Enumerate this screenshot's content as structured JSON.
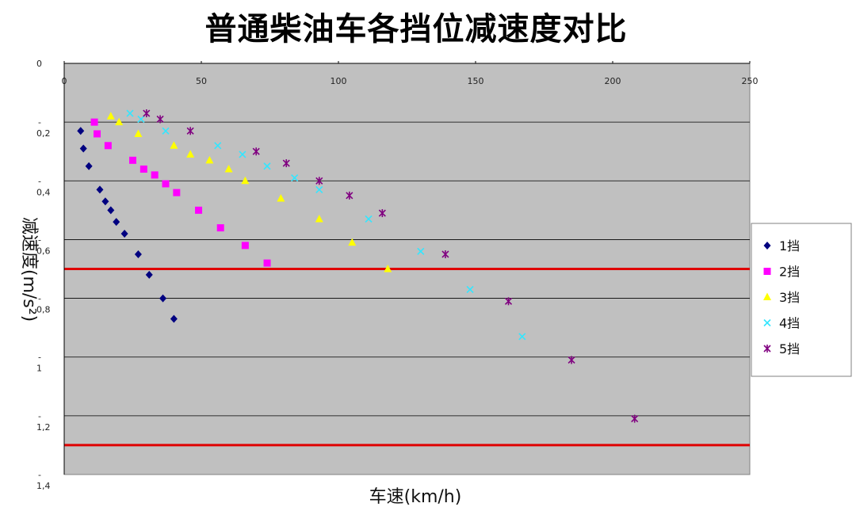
{
  "chart_data": {
    "type": "scatter",
    "title": "普通柴油车各挡位减速度对比",
    "xlabel": "车速(km/h)",
    "ylabel": "减速度(m/s²)",
    "xlim": [
      0,
      250
    ],
    "ylim": [
      0,
      1.4
    ],
    "y_inverted": true,
    "x_ticks": [
      0,
      50,
      100,
      150,
      200,
      250
    ],
    "y_ticks": [
      0,
      0.2,
      0.4,
      0.6,
      0.8,
      1.0,
      1.2,
      1.4
    ],
    "y_tick_labels": [
      "0",
      "0,2",
      "0,4",
      "0,6",
      "0,8",
      "1",
      "1,2",
      "1,4"
    ],
    "y_tick_prefix": "-",
    "grid": "horizontal",
    "plot_background": "#c0c0c0",
    "legend_position": "right",
    "reference_lines": [
      {
        "y": 0.7,
        "color": "#e00000"
      },
      {
        "y": 1.3,
        "color": "#e00000"
      }
    ],
    "series": [
      {
        "name": "1挡",
        "marker": "diamond",
        "color": "#000080",
        "x": [
          6,
          7,
          9,
          13,
          15,
          17,
          19,
          22,
          27,
          31,
          36,
          40
        ],
        "y": [
          0.23,
          0.29,
          0.35,
          0.43,
          0.47,
          0.5,
          0.54,
          0.58,
          0.65,
          0.72,
          0.8,
          0.87
        ]
      },
      {
        "name": "2挡",
        "marker": "square",
        "color": "#ff00ff",
        "x": [
          11,
          12,
          16,
          25,
          29,
          33,
          37,
          41,
          49,
          57,
          66,
          74
        ],
        "y": [
          0.2,
          0.24,
          0.28,
          0.33,
          0.36,
          0.38,
          0.41,
          0.44,
          0.5,
          0.56,
          0.62,
          0.68
        ]
      },
      {
        "name": "3挡",
        "marker": "triangle",
        "color": "#ffff00",
        "x": [
          17,
          20,
          27,
          40,
          46,
          53,
          60,
          66,
          79,
          93,
          105,
          118
        ],
        "y": [
          0.18,
          0.2,
          0.24,
          0.28,
          0.31,
          0.33,
          0.36,
          0.4,
          0.46,
          0.53,
          0.61,
          0.7
        ]
      },
      {
        "name": "4挡",
        "marker": "x",
        "color": "#33e6ff",
        "x": [
          24,
          28,
          37,
          56,
          65,
          74,
          84,
          93,
          111,
          130,
          148,
          167
        ],
        "y": [
          0.17,
          0.19,
          0.23,
          0.28,
          0.31,
          0.35,
          0.39,
          0.43,
          0.53,
          0.64,
          0.77,
          0.93
        ]
      },
      {
        "name": "5挡",
        "marker": "star",
        "color": "#800080",
        "x": [
          30,
          35,
          46,
          70,
          81,
          93,
          104,
          116,
          139,
          162,
          185,
          208
        ],
        "y": [
          0.17,
          0.19,
          0.23,
          0.3,
          0.34,
          0.4,
          0.45,
          0.51,
          0.65,
          0.81,
          1.01,
          1.21
        ]
      }
    ]
  }
}
